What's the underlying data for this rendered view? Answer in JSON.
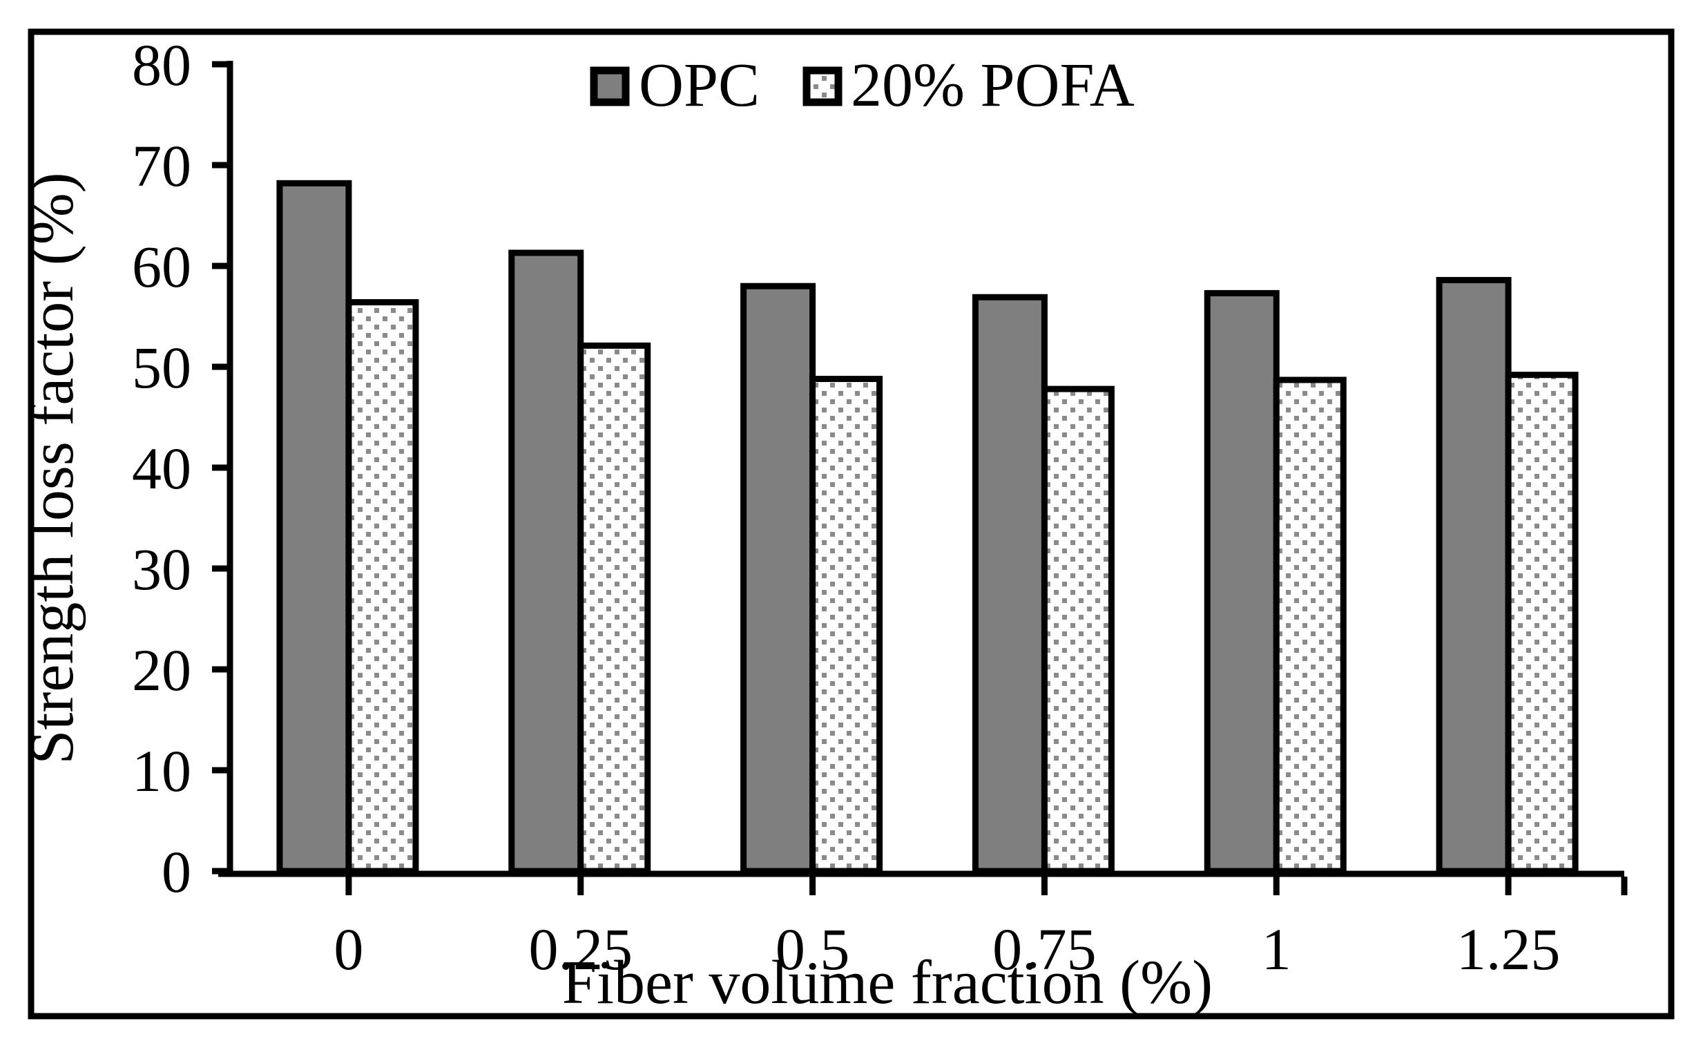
{
  "figure": {
    "background": "#ffffff",
    "border_color": "#000000"
  },
  "chart_data": {
    "type": "bar",
    "title": "",
    "categories": [
      "0",
      "0.25",
      "0.5",
      "0.75",
      "1",
      "1.25"
    ],
    "series": [
      {
        "name": "OPC",
        "values": [
          68.2,
          61.3,
          58.0,
          56.9,
          57.3,
          58.6
        ],
        "fill": "#7f7f7f",
        "pattern": "solid"
      },
      {
        "name": "20% POFA",
        "values": [
          56.4,
          52.1,
          48.8,
          47.8,
          48.7,
          49.2
        ],
        "fill": "#ffffff",
        "pattern": "dotted",
        "dot_color": "#8a8a8a"
      }
    ],
    "xlabel": "Fiber volume fraction (%)",
    "ylabel": "Strength loss factor (%)",
    "ylim": [
      0,
      80
    ],
    "yticks": [
      0,
      10,
      20,
      30,
      40,
      50,
      60,
      70,
      80
    ],
    "bar_outline_color": "#000000",
    "legend_position": "top-center",
    "grid": false
  }
}
